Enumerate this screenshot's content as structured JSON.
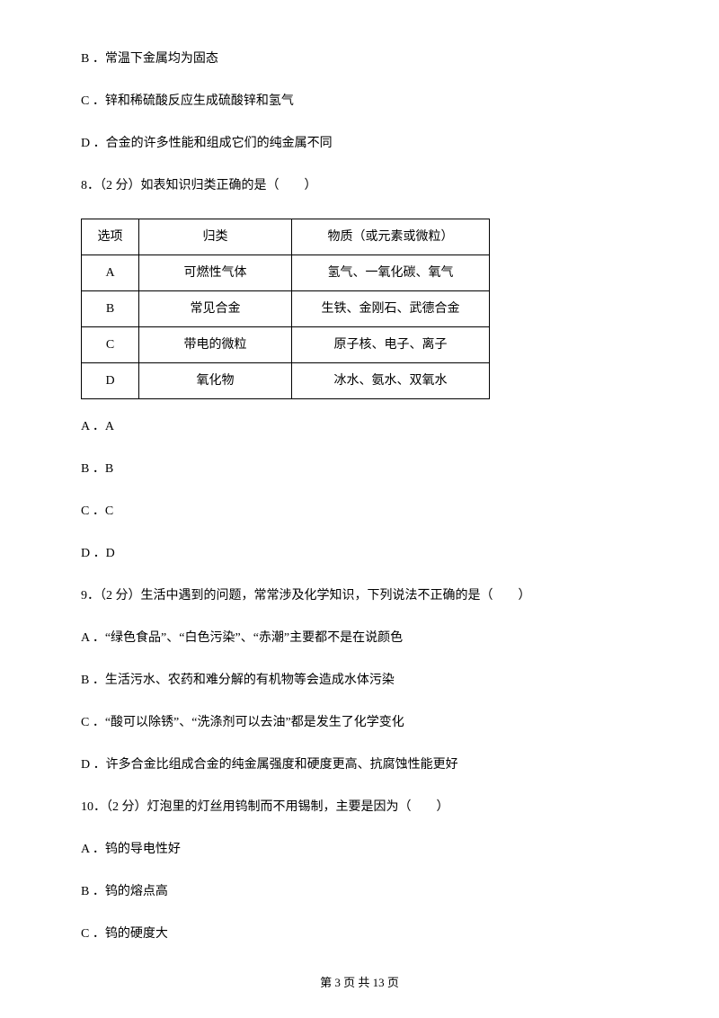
{
  "lines": {
    "l1": "B ．常温下金属均为固态",
    "l2": "C ．锌和稀硫酸反应生成硫酸锌和氢气",
    "l3": "D ．合金的许多性能和组成它们的纯金属不同",
    "q8": "8．（2 分）如表知识归类正确的是（　　）",
    "q8a": "A ．A",
    "q8b": "B ．B",
    "q8c": "C ．C",
    "q8d": "D ．D",
    "q9": "9．（2 分）生活中遇到的问题，常常涉及化学知识，下列说法不正确的是（　　）",
    "q9a": "A ．“绿色食品”、“白色污染”、“赤潮”主要都不是在说颜色",
    "q9b": "B ．生活污水、农药和难分解的有机物等会造成水体污染",
    "q9c": "C ．“酸可以除锈”、“洗涤剂可以去油”都是发生了化学变化",
    "q9d": "D ．许多合金比组成合金的纯金属强度和硬度更高、抗腐蚀性能更好",
    "q10": "10．（2 分）灯泡里的灯丝用钨制而不用锡制，主要是因为（　　）",
    "q10a": "A ．钨的导电性好",
    "q10b": "B ．钨的熔点高",
    "q10c": "C ．钨的硬度大"
  },
  "table": {
    "header": {
      "c0": "选项",
      "c1": "归类",
      "c2": "物质（或元素或微粒）"
    },
    "rows": [
      {
        "c0": "A",
        "c1": "可燃性气体",
        "c2": "氢气、一氧化碳、氧气"
      },
      {
        "c0": "B",
        "c1": "常见合金",
        "c2": "生铁、金刚石、武德合金"
      },
      {
        "c0": "C",
        "c1": "带电的微粒",
        "c2": "原子核、电子、离子"
      },
      {
        "c0": "D",
        "c1": "氧化物",
        "c2": "冰水、氨水、双氧水"
      }
    ]
  },
  "footer": "第 3 页 共 13 页"
}
